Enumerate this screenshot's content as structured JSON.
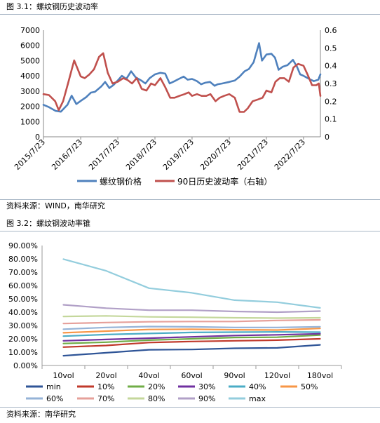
{
  "figure1": {
    "caption": "图 3.1：螺纹钢历史波动率",
    "source": "资料来源：WIND，南华研究"
  },
  "figure2": {
    "caption": "图 3.2：螺纹钢波动率锥",
    "source": "资料来源：南华研究"
  },
  "colors": {
    "price": "#4f81bd",
    "vol": "#c0504d",
    "rule": "#a9b7c6",
    "cone": {
      "min": "#2f5597",
      "10%": "#c0392b",
      "20%": "#70ad47",
      "30%": "#7030a0",
      "40%": "#4bacc6",
      "50%": "#f79646",
      "60%": "#95b3d7",
      "70%": "#e6a09a",
      "80%": "#c4d79b",
      "90%": "#b1a0c7",
      "max": "#93cddd"
    }
  },
  "chart_data": [
    {
      "type": "line",
      "x_tick_labels": [
        "2015/7/23",
        "2016/7/23",
        "2017/7/23",
        "2018/7/23",
        "2019/7/23",
        "2020/7/23",
        "2021/7/23",
        "2022/7/23"
      ],
      "x_range": [
        "2015/7/23",
        "2023/1/5"
      ],
      "ylim_left": [
        0,
        7000
      ],
      "yticks_left": [
        0,
        1000,
        2000,
        3000,
        4000,
        5000,
        6000,
        7000
      ],
      "ylim_right": [
        0,
        0.6
      ],
      "yticks_right": [
        0,
        0.1,
        0.2,
        0.3,
        0.4,
        0.5,
        0.6
      ],
      "legend_position": "bottom",
      "series": [
        {
          "name": "螺纹钢价格",
          "axis": "left",
          "x": [
            "2015/7/23",
            "2015/9/15",
            "2015/11/20",
            "2016/1/10",
            "2016/3/15",
            "2016/4/25",
            "2016/6/10",
            "2016/8/1",
            "2016/9/15",
            "2016/11/1",
            "2016/12/10",
            "2017/2/10",
            "2017/3/20",
            "2017/5/1",
            "2017/6/10",
            "2017/7/23",
            "2017/9/1",
            "2017/10/15",
            "2017/12/1",
            "2018/1/15",
            "2018/3/10",
            "2018/4/20",
            "2018/6/1",
            "2018/7/23",
            "2018/9/15",
            "2018/11/1",
            "2018/12/15",
            "2019/2/1",
            "2019/3/15",
            "2019/5/1",
            "2019/6/10",
            "2019/7/23",
            "2019/9/10",
            "2019/10/20",
            "2019/12/1",
            "2020/1/15",
            "2020/3/1",
            "2020/4/1",
            "2020/5/15",
            "2020/7/23",
            "2020/9/15",
            "2020/11/1",
            "2020/12/20",
            "2021/2/1",
            "2021/3/20",
            "2021/5/12",
            "2021/6/10",
            "2021/7/23",
            "2021/9/10",
            "2021/10/15",
            "2021/11/20",
            "2021/12/31",
            "2022/2/15",
            "2022/4/10",
            "2022/5/20",
            "2022/6/20",
            "2022/7/23",
            "2022/8/20",
            "2022/10/1",
            "2022/11/1",
            "2022/12/15",
            "2023/1/5"
          ],
          "y": [
            2100,
            1950,
            1700,
            1650,
            2100,
            2700,
            2150,
            2400,
            2600,
            2900,
            2950,
            3300,
            3600,
            3200,
            3400,
            3700,
            4000,
            3800,
            4300,
            3900,
            3700,
            3500,
            3850,
            4100,
            4200,
            4150,
            3500,
            3650,
            3800,
            3950,
            3750,
            3800,
            3650,
            3450,
            3550,
            3600,
            3350,
            3450,
            3500,
            3600,
            3700,
            3950,
            4300,
            4450,
            4900,
            6150,
            5000,
            5400,
            5450,
            5200,
            4400,
            4600,
            4700,
            5050,
            4600,
            4100,
            4000,
            3900,
            3750,
            3650,
            3750,
            4100
          ]
        },
        {
          "name": "90日历史波动率（右轴）",
          "axis": "right",
          "x": [
            "2015/7/23",
            "2015/9/15",
            "2015/11/15",
            "2015/12/20",
            "2016/2/1",
            "2016/3/20",
            "2016/5/20",
            "2016/7/23",
            "2016/9/1",
            "2016/10/15",
            "2016/12/1",
            "2017/1/20",
            "2017/3/1",
            "2017/4/15",
            "2017/6/1",
            "2017/7/23",
            "2017/9/15",
            "2017/10/25",
            "2017/12/10",
            "2018/1/25",
            "2018/3/15",
            "2018/5/1",
            "2018/6/15",
            "2018/7/23",
            "2018/9/15",
            "2018/11/1",
            "2018/12/20",
            "2019/2/1",
            "2019/3/20",
            "2019/5/10",
            "2019/6/20",
            "2019/7/23",
            "2019/9/10",
            "2019/10/25",
            "2019/12/10",
            "2020/1/20",
            "2020/3/10",
            "2020/4/20",
            "2020/6/1",
            "2020/7/23",
            "2020/9/15",
            "2020/11/1",
            "2020/12/15",
            "2021/1/20",
            "2021/3/10",
            "2021/5/1",
            "2021/6/15",
            "2021/7/23",
            "2021/9/10",
            "2021/10/20",
            "2021/12/1",
            "2022/1/15",
            "2022/3/1",
            "2022/4/15",
            "2022/6/1",
            "2022/7/23",
            "2022/9/1",
            "2022/10/15",
            "2022/11/25",
            "2022/12/20",
            "2023/1/5"
          ],
          "y": [
            0.24,
            0.235,
            0.2,
            0.15,
            0.2,
            0.3,
            0.43,
            0.34,
            0.33,
            0.35,
            0.38,
            0.45,
            0.47,
            0.36,
            0.3,
            0.31,
            0.33,
            0.32,
            0.3,
            0.33,
            0.27,
            0.26,
            0.3,
            0.29,
            0.33,
            0.28,
            0.22,
            0.22,
            0.23,
            0.24,
            0.25,
            0.23,
            0.24,
            0.23,
            0.23,
            0.24,
            0.2,
            0.22,
            0.23,
            0.24,
            0.22,
            0.14,
            0.14,
            0.16,
            0.2,
            0.21,
            0.22,
            0.26,
            0.25,
            0.31,
            0.33,
            0.33,
            0.31,
            0.39,
            0.41,
            0.4,
            0.35,
            0.29,
            0.29,
            0.3,
            0.23
          ]
        }
      ]
    },
    {
      "type": "line",
      "categories": [
        "10vol",
        "20vol",
        "40vol",
        "60vol",
        "90vol",
        "120vol",
        "180vol"
      ],
      "ylim": [
        0,
        0.9
      ],
      "yticks": [
        "0.00%",
        "10.00%",
        "20.00%",
        "30.00%",
        "40.00%",
        "50.00%",
        "60.00%",
        "70.00%",
        "80.00%",
        "90.00%"
      ],
      "legend_position": "bottom",
      "series": [
        {
          "name": "min",
          "values": [
            0.073,
            0.095,
            0.118,
            0.12,
            0.129,
            0.132,
            0.155
          ]
        },
        {
          "name": "10%",
          "values": [
            0.138,
            0.15,
            0.172,
            0.18,
            0.185,
            0.19,
            0.2
          ]
        },
        {
          "name": "20%",
          "values": [
            0.165,
            0.175,
            0.19,
            0.2,
            0.21,
            0.212,
            0.228
          ]
        },
        {
          "name": "30%",
          "values": [
            0.185,
            0.195,
            0.205,
            0.215,
            0.225,
            0.23,
            0.238
          ]
        },
        {
          "name": "40%",
          "values": [
            0.22,
            0.232,
            0.24,
            0.248,
            0.25,
            0.252,
            0.25
          ]
        },
        {
          "name": "50%",
          "values": [
            0.245,
            0.258,
            0.27,
            0.272,
            0.268,
            0.266,
            0.278
          ]
        },
        {
          "name": "60%",
          "values": [
            0.272,
            0.285,
            0.292,
            0.29,
            0.285,
            0.285,
            0.29
          ]
        },
        {
          "name": "70%",
          "values": [
            0.315,
            0.322,
            0.328,
            0.33,
            0.33,
            0.338,
            0.342
          ]
        },
        {
          "name": "80%",
          "values": [
            0.368,
            0.372,
            0.365,
            0.362,
            0.358,
            0.355,
            0.358
          ]
        },
        {
          "name": "90%",
          "values": [
            0.455,
            0.43,
            0.415,
            0.415,
            0.405,
            0.4,
            0.408
          ]
        },
        {
          "name": "max",
          "values": [
            0.798,
            0.71,
            0.58,
            0.545,
            0.49,
            0.475,
            0.432
          ]
        }
      ]
    }
  ]
}
